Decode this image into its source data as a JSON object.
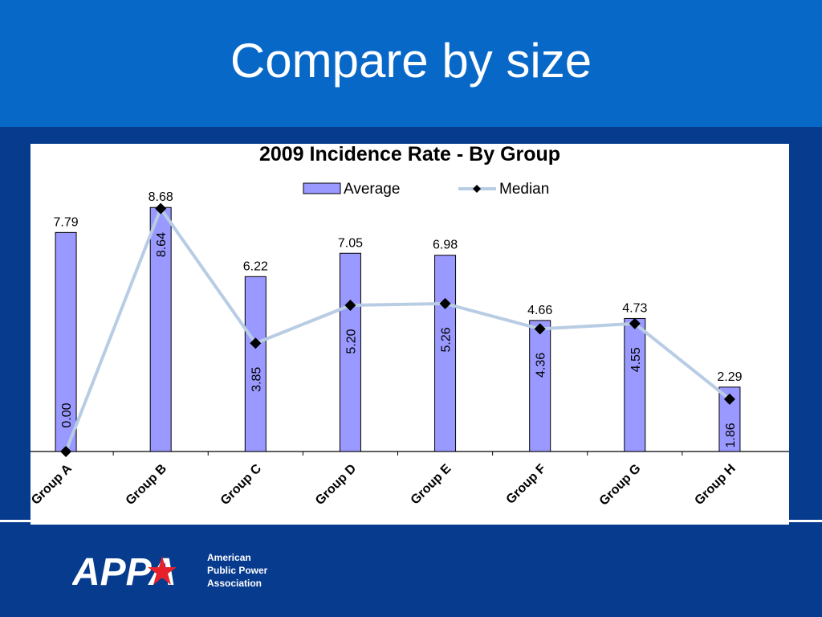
{
  "slide": {
    "title": "Compare by size"
  },
  "colors": {
    "header_band": "#0768c8",
    "background": "#063b8e",
    "bar_fill": "#9999ff",
    "median_line": "#b8cce4",
    "median_marker": "#000000"
  },
  "logo": {
    "wordmark": "APPA",
    "name_lines": [
      "American",
      "Public Power",
      "Association"
    ],
    "mark_icon": "appa-logo"
  },
  "chart_data": {
    "type": "bar",
    "title": "2009 Incidence Rate - By Group",
    "xlabel": "",
    "ylabel": "",
    "ylim": [
      0,
      10
    ],
    "grid": false,
    "legend": "top",
    "categories": [
      "Group A",
      "Group B",
      "Group C",
      "Group D",
      "Group E",
      "Group F",
      "Group G",
      "Group H"
    ],
    "series": [
      {
        "name": "Average",
        "type": "bar",
        "values": [
          7.79,
          8.68,
          6.22,
          7.05,
          6.98,
          4.66,
          4.73,
          2.29
        ],
        "labels": [
          "7.79",
          "8.68",
          "6.22",
          "7.05",
          "6.98",
          "4.66",
          "4.73",
          "2.29"
        ]
      },
      {
        "name": "Median",
        "type": "line",
        "values": [
          0.0,
          8.64,
          3.85,
          5.2,
          5.26,
          4.36,
          4.55,
          1.86
        ],
        "labels": [
          "0.00",
          "8.64",
          "3.85",
          "5.20",
          "5.26",
          "4.36",
          "4.55",
          "1.86"
        ]
      }
    ]
  }
}
